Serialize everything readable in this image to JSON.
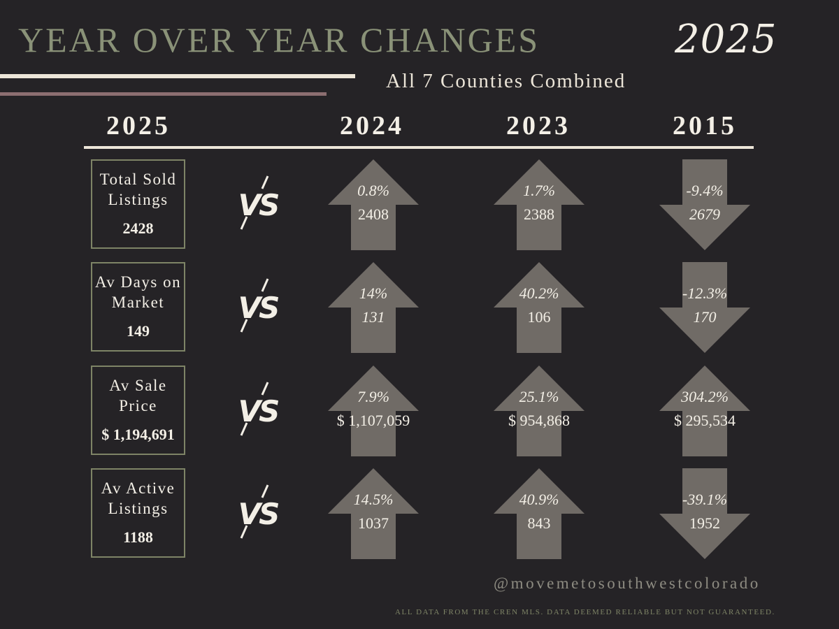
{
  "header": {
    "title": "YEAR OVER YEAR CHANGES",
    "year": "2025",
    "subtitle": "All 7 Counties Combined"
  },
  "columns": [
    "2025",
    "2024",
    "2023",
    "2015"
  ],
  "vs_label": "VS",
  "rows": [
    {
      "label": "Total Sold Listings",
      "value": "2428",
      "cells": [
        {
          "pct": "0.8%",
          "value": "2408",
          "direction": "up"
        },
        {
          "pct": "1.7%",
          "value": "2388",
          "direction": "up"
        },
        {
          "pct": "-9.4%",
          "value": "2679",
          "direction": "down"
        }
      ]
    },
    {
      "label": "Av Days on Market",
      "value": "149",
      "cells": [
        {
          "pct": "14%",
          "value": "131",
          "direction": "up"
        },
        {
          "pct": "40.2%",
          "value": "106",
          "direction": "up"
        },
        {
          "pct": "-12.3%",
          "value": "170",
          "direction": "down"
        }
      ]
    },
    {
      "label": "Av Sale Price",
      "value": "$ 1,194,691",
      "cells": [
        {
          "pct": "7.9%",
          "value": "$ 1,107,059",
          "direction": "up"
        },
        {
          "pct": "25.1%",
          "value": "$ 954,868",
          "direction": "up"
        },
        {
          "pct": "304.2%",
          "value": "$ 295,534",
          "direction": "up"
        }
      ]
    },
    {
      "label": "Av Active Listings",
      "value": "1188",
      "cells": [
        {
          "pct": "14.5%",
          "value": "1037",
          "direction": "up"
        },
        {
          "pct": "40.9%",
          "value": "843",
          "direction": "up"
        },
        {
          "pct": "-39.1%",
          "value": "1952",
          "direction": "down"
        }
      ]
    }
  ],
  "footer": {
    "handle": "@movemetosouthwestcolorado",
    "disclaimer": "ALL DATA FROM THE CREN MLS. DATA DEEMED RELIABLE BUT NOT GUARANTEED."
  },
  "colors": {
    "background": "#252326",
    "arrow": "#706b66",
    "title": "#8a9278",
    "box_border": "#7e8466",
    "text": "#f3efe6",
    "rule_rose": "#8c6e70"
  }
}
